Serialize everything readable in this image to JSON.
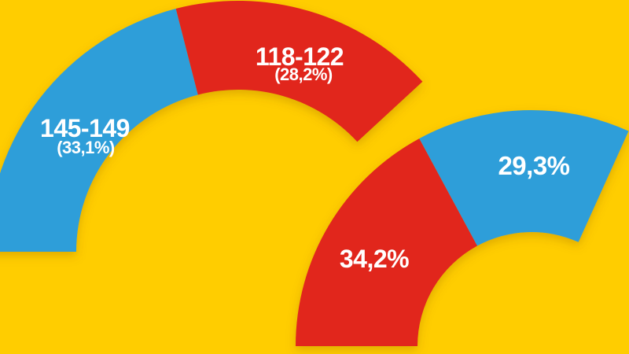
{
  "background_color": "#FFCD00",
  "palette": {
    "blue": "#2E9ED9",
    "red": "#E1251C",
    "label_text": "#FFFFFF",
    "shadow": "#7A4800"
  },
  "chart_data": [
    {
      "type": "pie",
      "variant": "semicircle-donut-gauge",
      "position": "left",
      "legend": "none",
      "notes": "half-donut gauge opening downward, partially cropped by frame edges",
      "segments": [
        {
          "label": "145-149",
          "sublabel": "(33,1%)",
          "value_pct": 33.1,
          "color": "#2E9ED9",
          "arc_start_deg": 180,
          "arc_end_deg": 104.4
        },
        {
          "label": "118-122",
          "sublabel": "(28,2%)",
          "value_pct": 28.2,
          "color": "#E1251C",
          "arc_start_deg": 104.4,
          "arc_end_deg": 42.7
        }
      ]
    },
    {
      "type": "pie",
      "variant": "semicircle-donut-gauge",
      "position": "right",
      "legend": "none",
      "notes": "half-donut gauge, 180 degrees = 100%, baseline near bottom of frame",
      "segments": [
        {
          "label": "34,2%",
          "sublabel": "",
          "value_pct": 34.2,
          "color": "#E1251C",
          "arc_start_deg": 180,
          "arc_end_deg": 118.4
        },
        {
          "label": "29,3%",
          "sublabel": "",
          "value_pct": 29.3,
          "color": "#2E9ED9",
          "arc_start_deg": 118.4,
          "arc_end_deg": 65.7
        }
      ]
    }
  ]
}
